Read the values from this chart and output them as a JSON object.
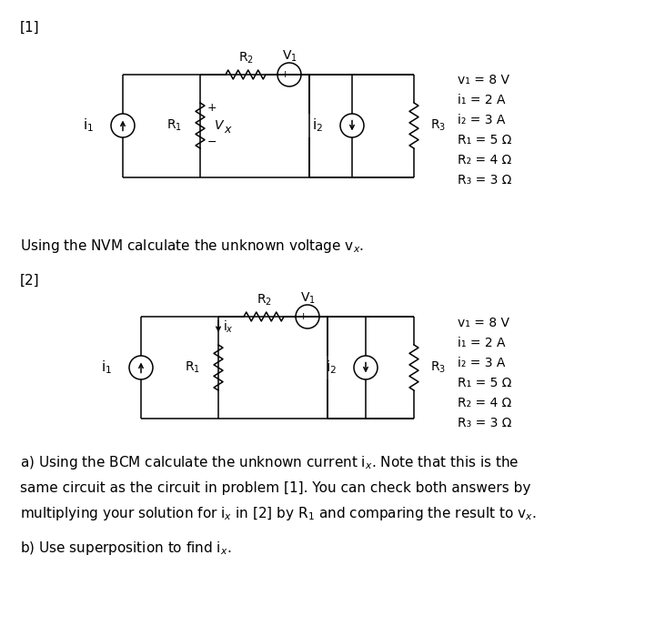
{
  "background_color": "#ffffff",
  "fig_width": 7.09,
  "fig_height": 6.88,
  "params": [
    "v₁ = 8 V",
    "i₁ = 2 A",
    "i₂ = 3 A",
    "R₁ = 5 Ω",
    "R₂ = 4 Ω",
    "R₃ = 3 Ω"
  ],
  "lw": 1.1,
  "fs_label": 11,
  "fs_text": 11,
  "fs_circuit": 10,
  "fs_params": 10
}
